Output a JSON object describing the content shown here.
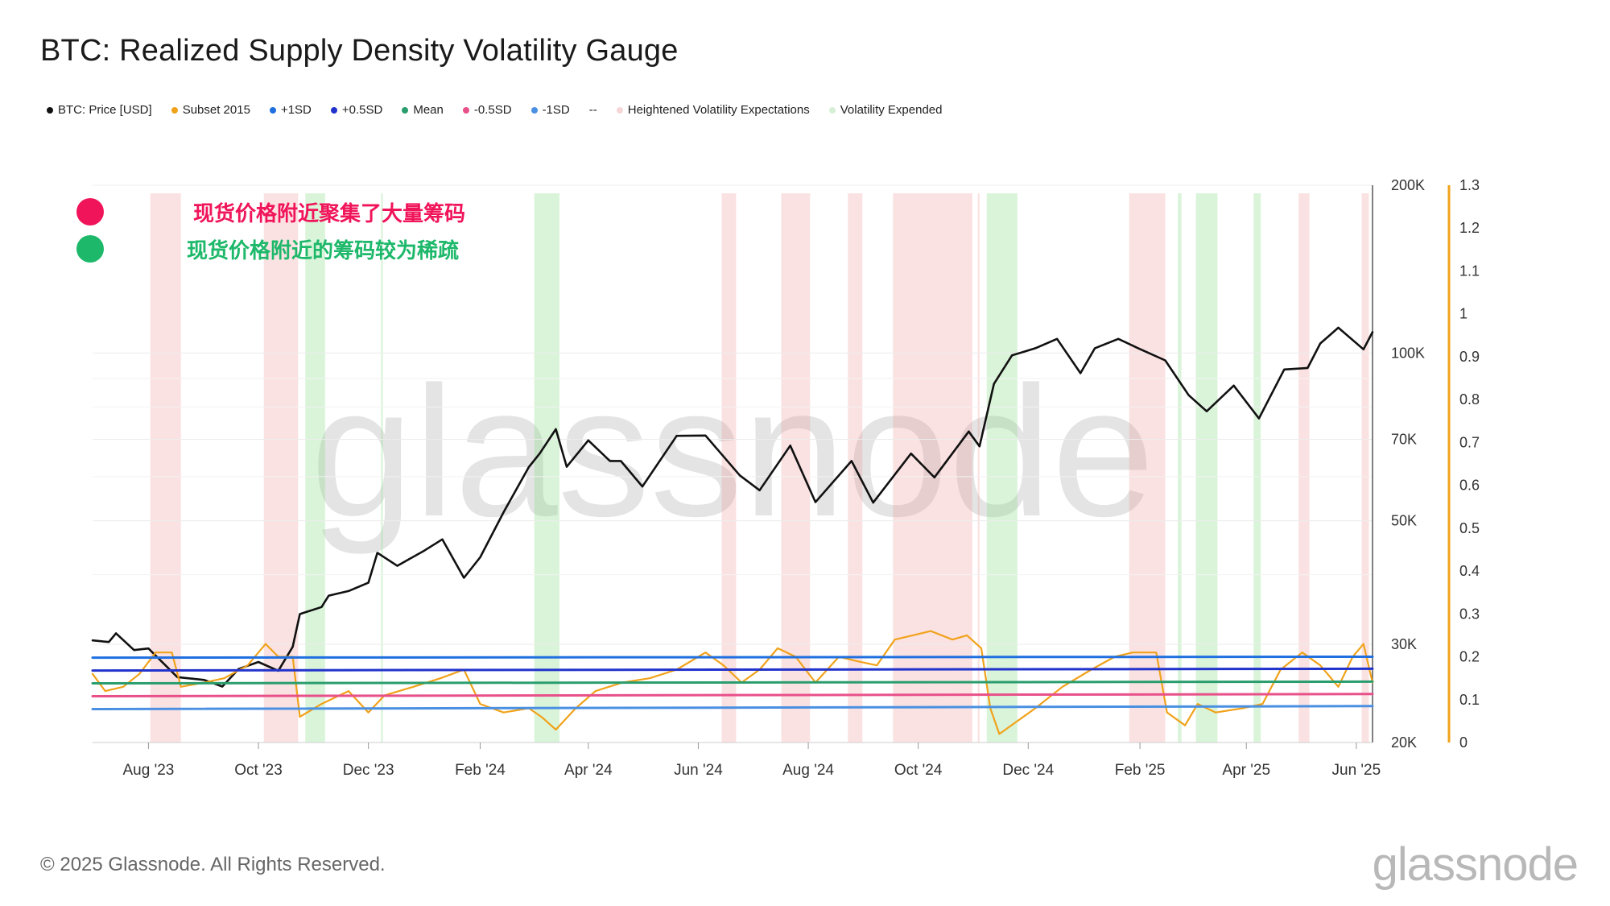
{
  "title": "BTC: Realized Supply Density Volatility Gauge",
  "legend": [
    {
      "label": "BTC: Price [USD]",
      "color": "#111111"
    },
    {
      "label": "Subset 2015",
      "color": "#f0a21a"
    },
    {
      "label": "+1SD",
      "color": "#1f6fe0"
    },
    {
      "label": "+0.5SD",
      "color": "#2233cc"
    },
    {
      "label": "Mean",
      "color": "#2a9d6e"
    },
    {
      "label": "-0.5SD",
      "color": "#e8508a"
    },
    {
      "label": "-1SD",
      "color": "#4a90e2"
    },
    {
      "label": "--",
      "color": ""
    },
    {
      "label": "Heightened Volatility Expectations",
      "color": "#f6d6d6"
    },
    {
      "label": "Volatility Expended",
      "color": "#d6f0d6"
    }
  ],
  "annotations": [
    {
      "text": "现货价格附近聚集了大量筹码",
      "color": "#f0155a"
    },
    {
      "text": "现货价格附近的筹码较为稀疏",
      "color": "#1db86a"
    }
  ],
  "footer": "© 2025 Glassnode. All Rights Reserved.",
  "brand": "glassnode",
  "watermark": "glassnode",
  "chart_data": {
    "type": "line",
    "x_range": [
      "2023-07-01",
      "2025-06-10"
    ],
    "x_ticks": [
      "Aug '23",
      "Oct '23",
      "Dec '23",
      "Feb '24",
      "Apr '24",
      "Jun '24",
      "Aug '24",
      "Oct '24",
      "Dec '24",
      "Feb '25",
      "Apr '25",
      "Jun '25"
    ],
    "y_left": {
      "scale": "log",
      "range": [
        20000,
        200000
      ],
      "ticks": [
        "20K",
        "30K",
        "50K",
        "70K",
        "100K",
        "200K"
      ],
      "tick_values": [
        20000,
        30000,
        50000,
        70000,
        100000,
        200000
      ]
    },
    "y_right": {
      "range": [
        0,
        1.3
      ],
      "ticks": [
        "0",
        "0.1",
        "0.2",
        "0.3",
        "0.4",
        "0.5",
        "0.6",
        "0.7",
        "0.8",
        "0.9",
        "1",
        "1.1",
        "1.2",
        "1.3"
      ],
      "tick_values": [
        0,
        0.1,
        0.2,
        0.3,
        0.4,
        0.5,
        0.6,
        0.7,
        0.8,
        0.9,
        1,
        1.1,
        1.2,
        1.3
      ]
    },
    "series": [
      {
        "name": "BTC: Price [USD]",
        "axis": "left",
        "color": "#111111",
        "points": [
          [
            "2023-07-01",
            30500
          ],
          [
            "2023-07-10",
            30300
          ],
          [
            "2023-07-14",
            31400
          ],
          [
            "2023-07-24",
            29300
          ],
          [
            "2023-08-01",
            29500
          ],
          [
            "2023-08-17",
            26200
          ],
          [
            "2023-09-01",
            25900
          ],
          [
            "2023-09-11",
            25200
          ],
          [
            "2023-09-20",
            27100
          ],
          [
            "2023-10-01",
            27900
          ],
          [
            "2023-10-12",
            26900
          ],
          [
            "2023-10-20",
            29700
          ],
          [
            "2023-10-24",
            34000
          ],
          [
            "2023-11-05",
            35000
          ],
          [
            "2023-11-09",
            36700
          ],
          [
            "2023-11-20",
            37400
          ],
          [
            "2023-12-01",
            38700
          ],
          [
            "2023-12-06",
            43800
          ],
          [
            "2023-12-17",
            41500
          ],
          [
            "2024-01-01",
            44200
          ],
          [
            "2024-01-11",
            46300
          ],
          [
            "2024-01-23",
            39500
          ],
          [
            "2024-02-01",
            43000
          ],
          [
            "2024-02-14",
            51800
          ],
          [
            "2024-02-28",
            62400
          ],
          [
            "2024-03-05",
            66000
          ],
          [
            "2024-03-14",
            73000
          ],
          [
            "2024-03-20",
            62500
          ],
          [
            "2024-04-01",
            69700
          ],
          [
            "2024-04-13",
            64000
          ],
          [
            "2024-04-19",
            64000
          ],
          [
            "2024-05-01",
            57600
          ],
          [
            "2024-05-20",
            71000
          ],
          [
            "2024-06-05",
            71100
          ],
          [
            "2024-06-24",
            60300
          ],
          [
            "2024-07-05",
            56700
          ],
          [
            "2024-07-22",
            68200
          ],
          [
            "2024-08-05",
            54000
          ],
          [
            "2024-08-25",
            64000
          ],
          [
            "2024-09-06",
            53900
          ],
          [
            "2024-09-27",
            66000
          ],
          [
            "2024-10-10",
            59800
          ],
          [
            "2024-10-29",
            72300
          ],
          [
            "2024-11-04",
            68000
          ],
          [
            "2024-11-12",
            88000
          ],
          [
            "2024-11-22",
            99000
          ],
          [
            "2024-12-05",
            102000
          ],
          [
            "2024-12-17",
            106000
          ],
          [
            "2024-12-30",
            92000
          ],
          [
            "2025-01-07",
            102000
          ],
          [
            "2025-01-20",
            106000
          ],
          [
            "2025-01-31",
            102000
          ],
          [
            "2025-02-15",
            97000
          ],
          [
            "2025-02-28",
            84000
          ],
          [
            "2025-03-10",
            78600
          ],
          [
            "2025-03-25",
            87400
          ],
          [
            "2025-04-08",
            76300
          ],
          [
            "2025-04-22",
            93400
          ],
          [
            "2025-05-05",
            94000
          ],
          [
            "2025-05-12",
            104000
          ],
          [
            "2025-05-22",
            111000
          ],
          [
            "2025-06-05",
            101500
          ],
          [
            "2025-06-10",
            109000
          ]
        ]
      },
      {
        "name": "Subset 2015",
        "axis": "right",
        "color": "#f0a21a",
        "points": [
          [
            "2023-07-01",
            0.16
          ],
          [
            "2023-07-08",
            0.12
          ],
          [
            "2023-07-18",
            0.13
          ],
          [
            "2023-07-27",
            0.16
          ],
          [
            "2023-08-05",
            0.21
          ],
          [
            "2023-08-14",
            0.21
          ],
          [
            "2023-08-19",
            0.13
          ],
          [
            "2023-09-01",
            0.14
          ],
          [
            "2023-09-12",
            0.15
          ],
          [
            "2023-09-25",
            0.18
          ],
          [
            "2023-10-05",
            0.23
          ],
          [
            "2023-10-12",
            0.2
          ],
          [
            "2023-10-20",
            0.2
          ],
          [
            "2023-10-24",
            0.06
          ],
          [
            "2023-11-05",
            0.09
          ],
          [
            "2023-11-20",
            0.12
          ],
          [
            "2023-12-01",
            0.07
          ],
          [
            "2023-12-10",
            0.11
          ],
          [
            "2023-12-26",
            0.13
          ],
          [
            "2024-01-10",
            0.15
          ],
          [
            "2024-01-23",
            0.17
          ],
          [
            "2024-02-01",
            0.09
          ],
          [
            "2024-02-14",
            0.07
          ],
          [
            "2024-02-28",
            0.08
          ],
          [
            "2024-03-06",
            0.06
          ],
          [
            "2024-03-14",
            0.03
          ],
          [
            "2024-03-25",
            0.08
          ],
          [
            "2024-04-05",
            0.12
          ],
          [
            "2024-04-20",
            0.14
          ],
          [
            "2024-05-05",
            0.15
          ],
          [
            "2024-05-20",
            0.17
          ],
          [
            "2024-06-05",
            0.21
          ],
          [
            "2024-06-15",
            0.18
          ],
          [
            "2024-06-25",
            0.14
          ],
          [
            "2024-07-05",
            0.17
          ],
          [
            "2024-07-15",
            0.22
          ],
          [
            "2024-07-25",
            0.2
          ],
          [
            "2024-08-05",
            0.14
          ],
          [
            "2024-08-18",
            0.2
          ],
          [
            "2024-08-28",
            0.19
          ],
          [
            "2024-09-08",
            0.18
          ],
          [
            "2024-09-18",
            0.24
          ],
          [
            "2024-09-28",
            0.25
          ],
          [
            "2024-10-08",
            0.26
          ],
          [
            "2024-10-20",
            0.24
          ],
          [
            "2024-10-28",
            0.25
          ],
          [
            "2024-11-05",
            0.22
          ],
          [
            "2024-11-10",
            0.08
          ],
          [
            "2024-11-15",
            0.02
          ],
          [
            "2024-11-25",
            0.05
          ],
          [
            "2024-12-05",
            0.08
          ],
          [
            "2024-12-20",
            0.13
          ],
          [
            "2025-01-05",
            0.17
          ],
          [
            "2025-01-18",
            0.2
          ],
          [
            "2025-01-28",
            0.21
          ],
          [
            "2025-02-10",
            0.21
          ],
          [
            "2025-02-16",
            0.07
          ],
          [
            "2025-02-26",
            0.04
          ],
          [
            "2025-03-05",
            0.09
          ],
          [
            "2025-03-15",
            0.07
          ],
          [
            "2025-03-30",
            0.08
          ],
          [
            "2025-04-10",
            0.09
          ],
          [
            "2025-04-20",
            0.17
          ],
          [
            "2025-05-02",
            0.21
          ],
          [
            "2025-05-12",
            0.18
          ],
          [
            "2025-05-22",
            0.13
          ],
          [
            "2025-05-30",
            0.2
          ],
          [
            "2025-06-05",
            0.23
          ],
          [
            "2025-06-10",
            0.14
          ]
        ]
      },
      {
        "name": "+1SD",
        "axis": "right",
        "color": "#1f6fe0",
        "points": [
          [
            "2023-07-01",
            0.198
          ],
          [
            "2025-06-10",
            0.2
          ]
        ]
      },
      {
        "name": "+0.5SD",
        "axis": "right",
        "color": "#2233cc",
        "points": [
          [
            "2023-07-01",
            0.168
          ],
          [
            "2025-06-10",
            0.172
          ]
        ]
      },
      {
        "name": "Mean",
        "axis": "right",
        "color": "#2a9d6e",
        "points": [
          [
            "2023-07-01",
            0.138
          ],
          [
            "2025-06-10",
            0.142
          ]
        ]
      },
      {
        "name": "-0.5SD",
        "axis": "right",
        "color": "#e8508a",
        "points": [
          [
            "2023-07-01",
            0.108
          ],
          [
            "2025-06-10",
            0.113
          ]
        ]
      },
      {
        "name": "-1SD",
        "axis": "right",
        "color": "#4a90e2",
        "points": [
          [
            "2023-07-01",
            0.078
          ],
          [
            "2025-06-10",
            0.085
          ]
        ]
      }
    ],
    "bands": [
      {
        "kind": "Heightened Volatility Expectations",
        "from": "2023-08-02",
        "to": "2023-08-19"
      },
      {
        "kind": "Heightened Volatility Expectations",
        "from": "2023-10-04",
        "to": "2023-10-23"
      },
      {
        "kind": "Volatility Expended",
        "from": "2023-10-27",
        "to": "2023-11-07"
      },
      {
        "kind": "Volatility Expended",
        "from": "2023-12-08",
        "to": "2023-12-09"
      },
      {
        "kind": "Volatility Expended",
        "from": "2024-03-02",
        "to": "2024-03-16"
      },
      {
        "kind": "Heightened Volatility Expectations",
        "from": "2024-06-14",
        "to": "2024-06-22"
      },
      {
        "kind": "Heightened Volatility Expectations",
        "from": "2024-07-17",
        "to": "2024-08-02"
      },
      {
        "kind": "Heightened Volatility Expectations",
        "from": "2024-08-23",
        "to": "2024-08-31"
      },
      {
        "kind": "Heightened Volatility Expectations",
        "from": "2024-09-17",
        "to": "2024-10-31"
      },
      {
        "kind": "Heightened Volatility Expectations",
        "from": "2024-11-03",
        "to": "2024-11-04"
      },
      {
        "kind": "Volatility Expended",
        "from": "2024-11-08",
        "to": "2024-11-25"
      },
      {
        "kind": "Heightened Volatility Expectations",
        "from": "2025-01-26",
        "to": "2025-02-15"
      },
      {
        "kind": "Volatility Expended",
        "from": "2025-02-22",
        "to": "2025-02-24"
      },
      {
        "kind": "Volatility Expended",
        "from": "2025-03-04",
        "to": "2025-03-16"
      },
      {
        "kind": "Volatility Expended",
        "from": "2025-04-05",
        "to": "2025-04-09"
      },
      {
        "kind": "Heightened Volatility Expectations",
        "from": "2025-04-30",
        "to": "2025-05-06"
      },
      {
        "kind": "Heightened Volatility Expectations",
        "from": "2025-06-04",
        "to": "2025-06-08"
      }
    ]
  }
}
